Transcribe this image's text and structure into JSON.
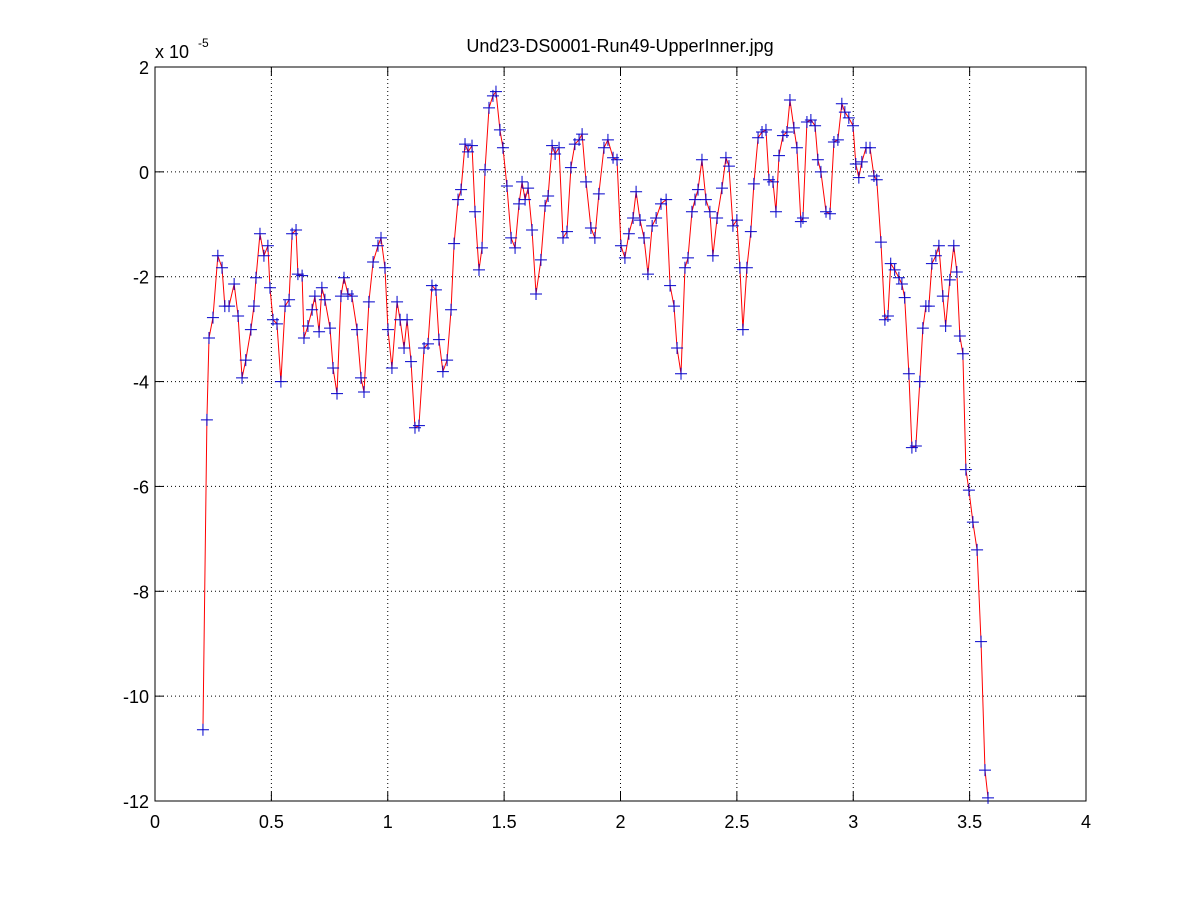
{
  "chart_data": {
    "type": "line",
    "title": "Und23-DS0001-Run49-UpperInner.jpg",
    "y_multiplier": "x 10",
    "y_exponent": "-5",
    "xlim": [
      0,
      4
    ],
    "xticks": [
      0,
      0.5,
      1,
      1.5,
      2,
      2.5,
      3,
      3.5,
      4
    ],
    "ylim": [
      -12,
      2
    ],
    "yticks": [
      -12,
      -10,
      -8,
      -6,
      -4,
      -2,
      0,
      2
    ],
    "grid": true,
    "line_color": "#ff0000",
    "marker_color": "#0000cc",
    "marker": "+",
    "x": [
      0.206,
      0.223,
      0.232,
      0.249,
      0.27,
      0.288,
      0.3,
      0.318,
      0.34,
      0.357,
      0.374,
      0.39,
      0.412,
      0.425,
      0.434,
      0.451,
      0.468,
      0.485,
      0.494,
      0.507,
      0.524,
      0.541,
      0.559,
      0.576,
      0.589,
      0.606,
      0.614,
      0.632,
      0.64,
      0.657,
      0.675,
      0.687,
      0.705,
      0.717,
      0.73,
      0.752,
      0.765,
      0.782,
      0.799,
      0.812,
      0.829,
      0.846,
      0.868,
      0.885,
      0.898,
      0.919,
      0.937,
      0.958,
      0.971,
      0.988,
      1.001,
      1.018,
      1.04,
      1.053,
      1.07,
      1.083,
      1.1,
      1.117,
      1.134,
      1.156,
      1.173,
      1.19,
      1.207,
      1.22,
      1.237,
      1.255,
      1.272,
      1.285,
      1.302,
      1.315,
      1.332,
      1.345,
      1.362,
      1.375,
      1.392,
      1.405,
      1.418,
      1.435,
      1.452,
      1.465,
      1.482,
      1.495,
      1.512,
      1.53,
      1.547,
      1.564,
      1.577,
      1.59,
      1.603,
      1.62,
      1.637,
      1.658,
      1.676,
      1.689,
      1.706,
      1.719,
      1.736,
      1.753,
      1.77,
      1.787,
      1.804,
      1.822,
      1.835,
      1.852,
      1.873,
      1.89,
      1.907,
      1.929,
      1.946,
      1.968,
      1.985,
      2.002,
      2.019,
      2.036,
      2.054,
      2.067,
      2.084,
      2.101,
      2.118,
      2.136,
      2.153,
      2.174,
      2.196,
      2.213,
      2.23,
      2.243,
      2.26,
      2.277,
      2.29,
      2.307,
      2.32,
      2.333,
      2.35,
      2.367,
      2.384,
      2.397,
      2.415,
      2.436,
      2.453,
      2.466,
      2.483,
      2.5,
      2.513,
      2.526,
      2.543,
      2.56,
      2.573,
      2.591,
      2.608,
      2.625,
      2.638,
      2.655,
      2.668,
      2.681,
      2.698,
      2.715,
      2.728,
      2.745,
      2.758,
      2.775,
      2.784,
      2.801,
      2.818,
      2.836,
      2.848,
      2.861,
      2.883,
      2.9,
      2.917,
      2.934,
      2.951,
      2.964,
      2.981,
      2.999,
      3.011,
      3.024,
      3.037,
      3.055,
      3.072,
      3.089,
      3.101,
      3.119,
      3.136,
      3.149,
      3.161,
      3.178,
      3.196,
      3.209,
      3.221,
      3.239,
      3.252,
      3.269,
      3.286,
      3.299,
      3.312,
      3.325,
      3.338,
      3.355,
      3.368,
      3.385,
      3.397,
      3.415,
      3.432,
      3.445,
      3.458,
      3.471,
      3.484,
      3.497,
      3.514,
      3.532,
      3.549,
      3.566,
      3.579
    ],
    "values": [
      -10.64,
      -4.73,
      -3.17,
      -2.78,
      -1.6,
      -1.83,
      -2.56,
      -2.56,
      -2.14,
      -2.75,
      -3.93,
      -3.59,
      -3.01,
      -2.56,
      -2.02,
      -1.18,
      -1.6,
      -1.41,
      -2.21,
      -2.82,
      -2.9,
      -4.0,
      -2.56,
      -2.44,
      -1.18,
      -1.11,
      -1.95,
      -1.98,
      -3.17,
      -2.94,
      -2.63,
      -2.37,
      -3.05,
      -2.21,
      -2.44,
      -2.98,
      -3.74,
      -4.23,
      -2.37,
      -2.02,
      -2.33,
      -2.37,
      -3.01,
      -3.93,
      -4.2,
      -2.48,
      -1.72,
      -1.41,
      -1.26,
      -1.83,
      -3.01,
      -3.74,
      -2.48,
      -2.82,
      -3.36,
      -2.82,
      -3.62,
      -4.88,
      -4.84,
      -3.36,
      -3.28,
      -2.17,
      -2.25,
      -3.2,
      -3.81,
      -3.59,
      -2.63,
      -1.37,
      -0.53,
      -0.34,
      0.53,
      0.38,
      0.5,
      -0.76,
      -1.87,
      -1.45,
      0.04,
      1.22,
      1.45,
      1.53,
      0.8,
      0.46,
      -0.27,
      -1.26,
      -1.45,
      -0.61,
      -0.19,
      -0.53,
      -0.31,
      -1.11,
      -2.33,
      -1.68,
      -0.65,
      -0.46,
      0.5,
      0.34,
      0.46,
      -1.26,
      -1.14,
      0.08,
      0.53,
      0.61,
      0.72,
      -0.19,
      -1.07,
      -1.26,
      -0.42,
      0.46,
      0.61,
      0.27,
      0.23,
      -1.41,
      -1.64,
      -1.18,
      -0.88,
      -0.38,
      -0.92,
      -1.26,
      -1.95,
      -1.03,
      -0.88,
      -0.61,
      -0.53,
      -2.17,
      -2.56,
      -3.36,
      -3.85,
      -1.83,
      -1.64,
      -0.76,
      -0.53,
      -0.34,
      0.23,
      -0.53,
      -0.76,
      -1.6,
      -0.88,
      -0.31,
      0.27,
      0.11,
      -1.03,
      -0.92,
      -1.83,
      -3.01,
      -1.83,
      -1.14,
      -0.23,
      0.65,
      0.76,
      0.8,
      -0.15,
      -0.19,
      -0.76,
      0.31,
      0.69,
      0.76,
      1.37,
      0.84,
      0.46,
      -0.95,
      -0.88,
      0.95,
      0.99,
      0.88,
      0.23,
      0,
      -0.76,
      -0.8,
      0.57,
      0.61,
      1.3,
      1.14,
      1.03,
      0.88,
      0.15,
      -0.11,
      0.19,
      0.46,
      0.46,
      -0.08,
      -0.15,
      -1.34,
      -2.82,
      -2.75,
      -1.75,
      -1.87,
      -2.02,
      -2.14,
      -2.4,
      -3.85,
      -5.26,
      -5.23,
      -4.0,
      -2.98,
      -2.56,
      -2.56,
      -1.75,
      -1.6,
      -1.41,
      -2.37,
      -2.94,
      -2.06,
      -1.41,
      -1.91,
      -3.13,
      -3.47,
      -5.68,
      -6.07,
      -6.68,
      -7.21,
      -8.96,
      -11.41,
      -11.94
    ]
  }
}
